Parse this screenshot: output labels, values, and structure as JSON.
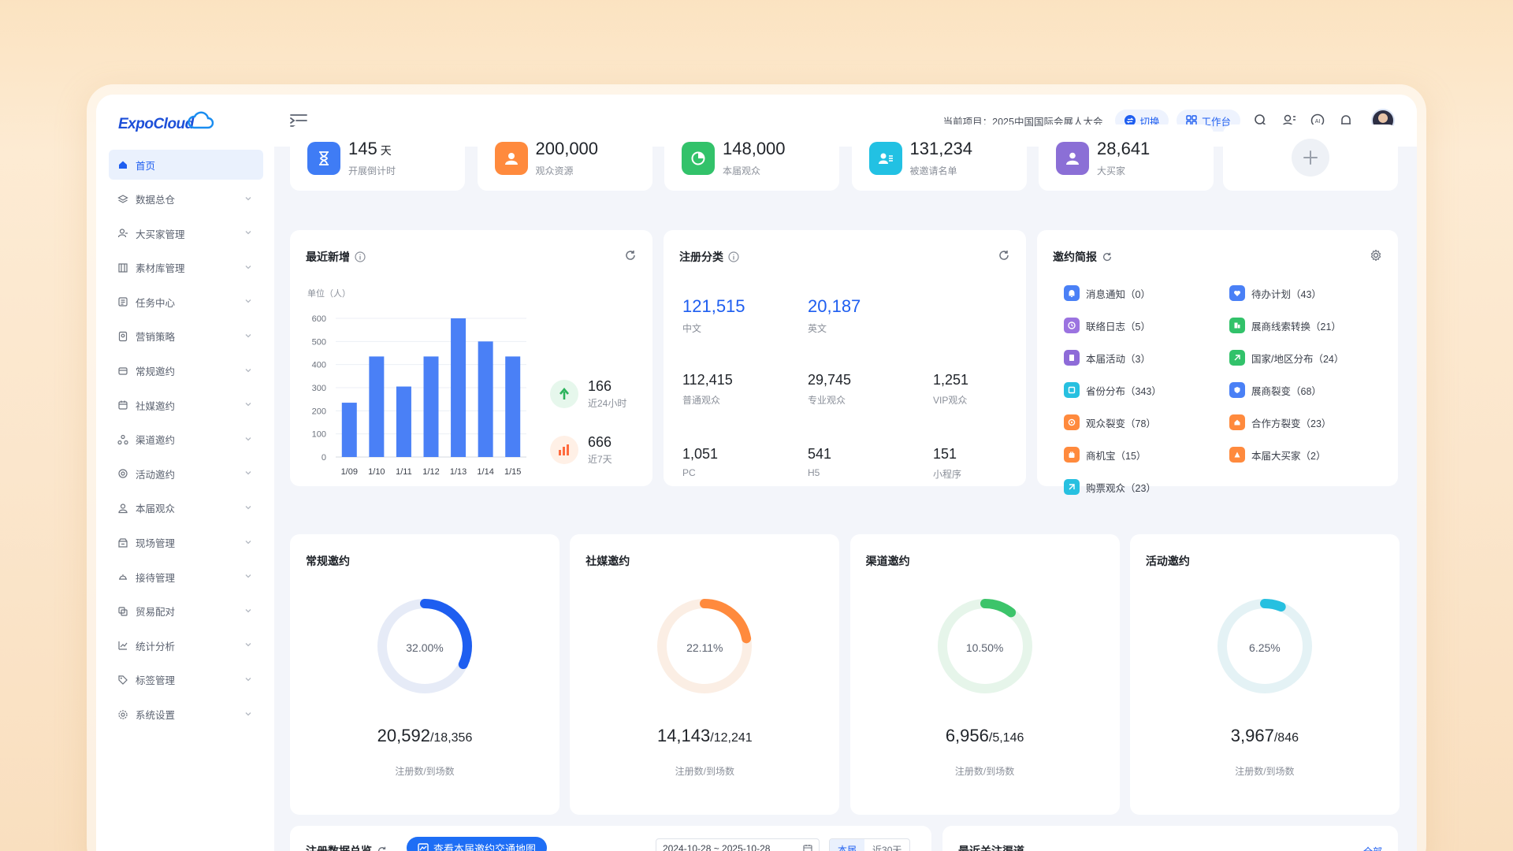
{
  "app": {
    "logo_text": "ExpoCloud"
  },
  "sidebar": {
    "items": [
      {
        "label": "首页",
        "icon": "home-icon",
        "active": true
      },
      {
        "label": "数据总仓",
        "icon": "layers-icon"
      },
      {
        "label": "大买家管理",
        "icon": "user-manage-icon"
      },
      {
        "label": "素材库管理",
        "icon": "building-icon"
      },
      {
        "label": "任务中心",
        "icon": "task-icon"
      },
      {
        "label": "营销策略",
        "icon": "strategy-icon"
      },
      {
        "label": "常规邀约",
        "icon": "mail-icon"
      },
      {
        "label": "社媒邀约",
        "icon": "calendar-icon"
      },
      {
        "label": "渠道邀约",
        "icon": "channel-icon"
      },
      {
        "label": "活动邀约",
        "icon": "activity-icon"
      },
      {
        "label": "本届观众",
        "icon": "audience-icon"
      },
      {
        "label": "现场管理",
        "icon": "onsite-icon"
      },
      {
        "label": "接待管理",
        "icon": "reception-icon"
      },
      {
        "label": "贸易配对",
        "icon": "match-icon"
      },
      {
        "label": "统计分析",
        "icon": "stats-icon"
      },
      {
        "label": "标签管理",
        "icon": "tag-icon"
      },
      {
        "label": "系统设置",
        "icon": "settings-icon"
      }
    ]
  },
  "header": {
    "project_text": "当前项目：2025中国国际会展人大会",
    "switch_label": "切换",
    "workbench_label": "工作台"
  },
  "stats": [
    {
      "value": "145",
      "unit": "天",
      "label": "开展倒计时",
      "color": "#3f7cf5"
    },
    {
      "value": "200,000",
      "unit": "",
      "label": "观众资源",
      "color": "#ff8a3d"
    },
    {
      "value": "148,000",
      "unit": "",
      "label": "本届观众",
      "color": "#32c26a"
    },
    {
      "value": "131,234",
      "unit": "",
      "label": "被邀请名单",
      "color": "#22c1e3"
    },
    {
      "value": "28,641",
      "unit": "",
      "label": "大买家",
      "color": "#8b6fd6"
    }
  ],
  "recent": {
    "title": "最近新增",
    "unit": "单位（人）",
    "side": [
      {
        "value": "166",
        "label": "近24小时"
      },
      {
        "value": "666",
        "label": "近7天"
      }
    ]
  },
  "chart_data": {
    "type": "bar",
    "categories": [
      "1/09",
      "1/10",
      "1/11",
      "1/12",
      "1/13",
      "1/14",
      "1/15"
    ],
    "values": [
      235,
      435,
      305,
      435,
      600,
      500,
      435
    ],
    "ylim": [
      0,
      600
    ],
    "yticks": [
      0,
      100,
      200,
      300,
      400,
      500,
      600
    ],
    "grid": true,
    "color": "#4a80f6"
  },
  "registration": {
    "title": "注册分类",
    "rows": [
      [
        {
          "value": "121,515",
          "label": "中文"
        },
        {
          "value": "20,187",
          "label": "英文"
        }
      ],
      [
        {
          "value": "112,415",
          "label": "普通观众"
        },
        {
          "value": "29,745",
          "label": "专业观众"
        },
        {
          "value": "1,251",
          "label": "VIP观众"
        }
      ],
      [
        {
          "value": "1,051",
          "label": "PC"
        },
        {
          "value": "541",
          "label": "H5"
        },
        {
          "value": "151",
          "label": "小程序"
        }
      ]
    ]
  },
  "invitation": {
    "title": "邀约简报",
    "left": [
      {
        "label": "消息通知（0）",
        "color": "#4a80f6",
        "icon": "bell-icon"
      },
      {
        "label": "联络日志（5）",
        "color": "#9b73e0",
        "icon": "clock-icon"
      },
      {
        "label": "本届活动（3）",
        "color": "#8e6bd8",
        "icon": "doc-icon"
      },
      {
        "label": "省份分布（343）",
        "color": "#27c0e0",
        "icon": "map-icon"
      },
      {
        "label": "观众裂变（78）",
        "color": "#ff8a3d",
        "icon": "split-icon"
      },
      {
        "label": "商机宝（15）",
        "color": "#ff8a3d",
        "icon": "bag-icon"
      },
      {
        "label": "购票观众（23）",
        "color": "#27c0e0",
        "icon": "ticket-icon"
      }
    ],
    "right": [
      {
        "label": "待办计划（43）",
        "color": "#4a80f6",
        "icon": "heart-icon"
      },
      {
        "label": "展商线索转换（21）",
        "color": "#32c26a",
        "icon": "convert-icon"
      },
      {
        "label": "国家/地区分布（24）",
        "color": "#32c26a",
        "icon": "globe-icon"
      },
      {
        "label": "展商裂变（68）",
        "color": "#4a80f6",
        "icon": "shield-icon"
      },
      {
        "label": "合作方裂变（23）",
        "color": "#ff8a3d",
        "icon": "house-icon"
      },
      {
        "label": "本届大买家（2）",
        "color": "#ff8a3d",
        "icon": "buyer-icon"
      }
    ]
  },
  "donuts": [
    {
      "title": "常规邀约",
      "percent": 32.0,
      "percent_label": "32.00%",
      "registered": "20,592",
      "attended": "/18,356",
      "caption": "注册数/到场数",
      "color": "#1e5ef0",
      "track": "#e6ebf7"
    },
    {
      "title": "社媒邀约",
      "percent": 22.11,
      "percent_label": "22.11%",
      "registered": "14,143",
      "attended": "/12,241",
      "caption": "注册数/到场数",
      "color": "#ff8a3d",
      "track": "#fbeee4"
    },
    {
      "title": "渠道邀约",
      "percent": 10.5,
      "percent_label": "10.50%",
      "registered": "6,956",
      "attended": "/5,146",
      "caption": "注册数/到场数",
      "color": "#3cc46a",
      "track": "#e6f5ea"
    },
    {
      "title": "活动邀约",
      "percent": 6.25,
      "percent_label": "6.25%",
      "registered": "3,967",
      "attended": "/846",
      "caption": "注册数/到场数",
      "color": "#27c0e0",
      "track": "#e4f2f5"
    }
  ],
  "bottom": {
    "left_title": "注册数据总览",
    "map_button": "查看本届邀约交通地图",
    "date_range": "2024-10-28 ~ 2025-10-28",
    "tab_this": "本届",
    "tab_30": "近30天",
    "right_title": "最近关注渠道",
    "right_link": "全部"
  }
}
